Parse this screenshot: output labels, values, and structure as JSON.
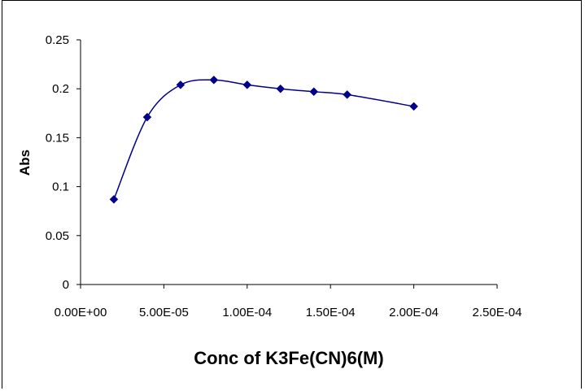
{
  "chart_data": {
    "type": "line",
    "title": "",
    "xlabel": "Conc of K3Fe(CN)6(M)",
    "ylabel": "Abs",
    "x": [
      2e-05,
      4e-05,
      6e-05,
      8e-05,
      0.0001,
      0.00012,
      0.00014,
      0.00016,
      0.0002
    ],
    "series": [
      {
        "values": [
          0.087,
          0.171,
          0.204,
          0.209,
          0.204,
          0.2,
          0.197,
          0.194,
          0.182
        ],
        "color": "#00008B"
      }
    ],
    "xlim": [
      0,
      0.00025
    ],
    "ylim": [
      0,
      0.25
    ],
    "xticks": [
      0,
      5e-05,
      0.0001,
      0.00015,
      0.0002,
      0.00025
    ],
    "xtick_labels": [
      "0.00E+00",
      "5.00E-05",
      "1.00E-04",
      "1.50E-04",
      "2.00E-04",
      "2.50E-04"
    ],
    "yticks": [
      0,
      0.05,
      0.1,
      0.15,
      0.2,
      0.25
    ],
    "ytick_labels": [
      "0",
      "0.05",
      "0.1",
      "0.15",
      "0.2",
      "0.25"
    ],
    "grid": false,
    "legend": "none",
    "marker": "diamond",
    "smooth": true
  }
}
